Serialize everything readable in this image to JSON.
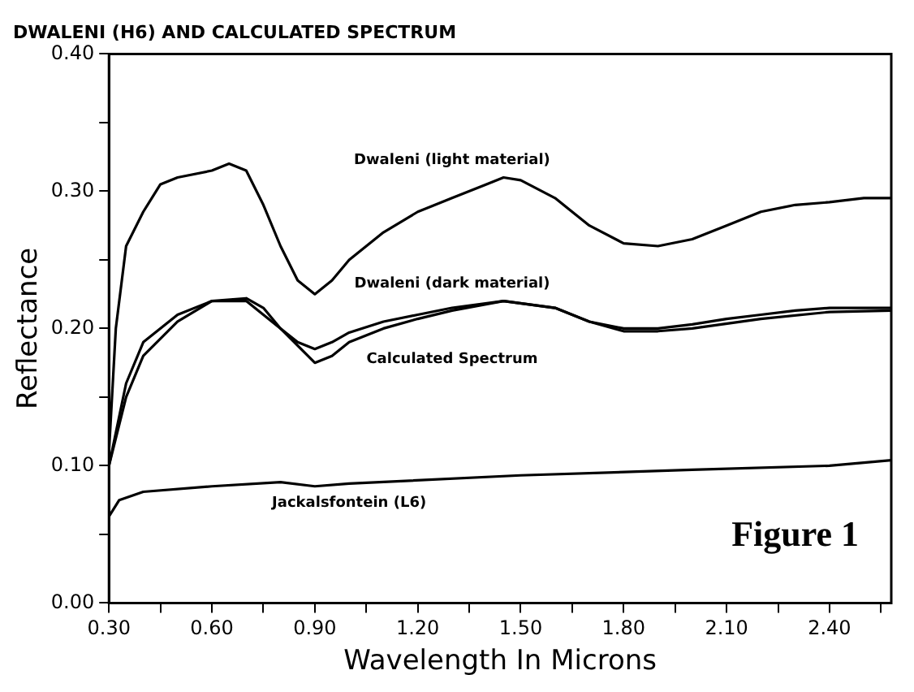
{
  "chart_data": {
    "type": "line",
    "title": "DWALENI (H6) AND CALCULATED SPECTRUM",
    "xlabel": "Wavelength In Microns",
    "ylabel": "Reflectance",
    "xlim": [
      0.3,
      2.58
    ],
    "ylim": [
      0,
      0.4
    ],
    "xticks": [
      {
        "value": 0.3,
        "label": "0.30"
      },
      {
        "value": 0.45,
        "label": null
      },
      {
        "value": 0.6,
        "label": "0.60"
      },
      {
        "value": 0.75,
        "label": null
      },
      {
        "value": 0.9,
        "label": "0.90"
      },
      {
        "value": 1.05,
        "label": null
      },
      {
        "value": 1.2,
        "label": "1.20"
      },
      {
        "value": 1.35,
        "label": null
      },
      {
        "value": 1.5,
        "label": "1.50"
      },
      {
        "value": 1.65,
        "label": null
      },
      {
        "value": 1.8,
        "label": "1.80"
      },
      {
        "value": 1.95,
        "label": null
      },
      {
        "value": 2.1,
        "label": "2.10"
      },
      {
        "value": 2.25,
        "label": null
      },
      {
        "value": 2.4,
        "label": "2.40"
      },
      {
        "value": 2.55,
        "label": null
      }
    ],
    "yticks": [
      {
        "value": 0,
        "label": "0.00"
      },
      {
        "value": 0.05,
        "label": null
      },
      {
        "value": 0.1,
        "label": "0.10"
      },
      {
        "value": 0.15,
        "label": null
      },
      {
        "value": 0.2,
        "label": "0.20"
      },
      {
        "value": 0.25,
        "label": null
      },
      {
        "value": 0.3,
        "label": "0.30"
      },
      {
        "value": 0.35,
        "label": null
      },
      {
        "value": 0.4,
        "label": "0.40"
      }
    ],
    "grid": false,
    "marker": "none",
    "line_style": "solid",
    "annotations": [
      "Figure 1"
    ],
    "series": [
      {
        "name": "Dwaleni (light material)",
        "color": "#000000",
        "x": [
          0.3,
          0.32,
          0.35,
          0.4,
          0.45,
          0.5,
          0.6,
          0.65,
          0.7,
          0.75,
          0.8,
          0.85,
          0.9,
          0.95,
          1.0,
          1.1,
          1.2,
          1.3,
          1.4,
          1.45,
          1.5,
          1.6,
          1.7,
          1.8,
          1.9,
          2.0,
          2.1,
          2.2,
          2.3,
          2.4,
          2.5,
          2.58
        ],
        "values": [
          0.11,
          0.2,
          0.26,
          0.285,
          0.305,
          0.31,
          0.315,
          0.32,
          0.315,
          0.29,
          0.26,
          0.235,
          0.225,
          0.235,
          0.25,
          0.27,
          0.285,
          0.295,
          0.305,
          0.31,
          0.308,
          0.295,
          0.275,
          0.262,
          0.26,
          0.265,
          0.275,
          0.285,
          0.29,
          0.292,
          0.295,
          0.295
        ]
      },
      {
        "name": "Dwaleni (dark material)",
        "color": "#000000",
        "x": [
          0.3,
          0.35,
          0.4,
          0.5,
          0.6,
          0.7,
          0.75,
          0.8,
          0.85,
          0.9,
          0.95,
          1.0,
          1.1,
          1.2,
          1.3,
          1.45,
          1.6,
          1.7,
          1.8,
          1.9,
          2.0,
          2.1,
          2.2,
          2.3,
          2.4,
          2.58
        ],
        "values": [
          0.1,
          0.16,
          0.19,
          0.21,
          0.22,
          0.222,
          0.215,
          0.2,
          0.19,
          0.185,
          0.19,
          0.197,
          0.205,
          0.21,
          0.215,
          0.22,
          0.215,
          0.205,
          0.2,
          0.2,
          0.203,
          0.207,
          0.21,
          0.213,
          0.215,
          0.215
        ]
      },
      {
        "name": "Calculated Spectrum",
        "color": "#000000",
        "x": [
          0.3,
          0.35,
          0.4,
          0.5,
          0.6,
          0.7,
          0.8,
          0.9,
          0.95,
          1.0,
          1.1,
          1.2,
          1.3,
          1.45,
          1.6,
          1.7,
          1.8,
          1.9,
          2.0,
          2.2,
          2.4,
          2.58
        ],
        "values": [
          0.1,
          0.15,
          0.18,
          0.205,
          0.22,
          0.22,
          0.2,
          0.175,
          0.18,
          0.19,
          0.2,
          0.207,
          0.213,
          0.22,
          0.215,
          0.205,
          0.198,
          0.198,
          0.2,
          0.207,
          0.212,
          0.213
        ]
      },
      {
        "name": "Jackalsfontein (L6)",
        "color": "#000000",
        "x": [
          0.3,
          0.33,
          0.4,
          0.6,
          0.8,
          0.9,
          1.0,
          1.5,
          2.0,
          2.4,
          2.58
        ],
        "values": [
          0.063,
          0.075,
          0.081,
          0.085,
          0.088,
          0.085,
          0.087,
          0.093,
          0.097,
          0.1,
          0.104
        ]
      }
    ]
  }
}
